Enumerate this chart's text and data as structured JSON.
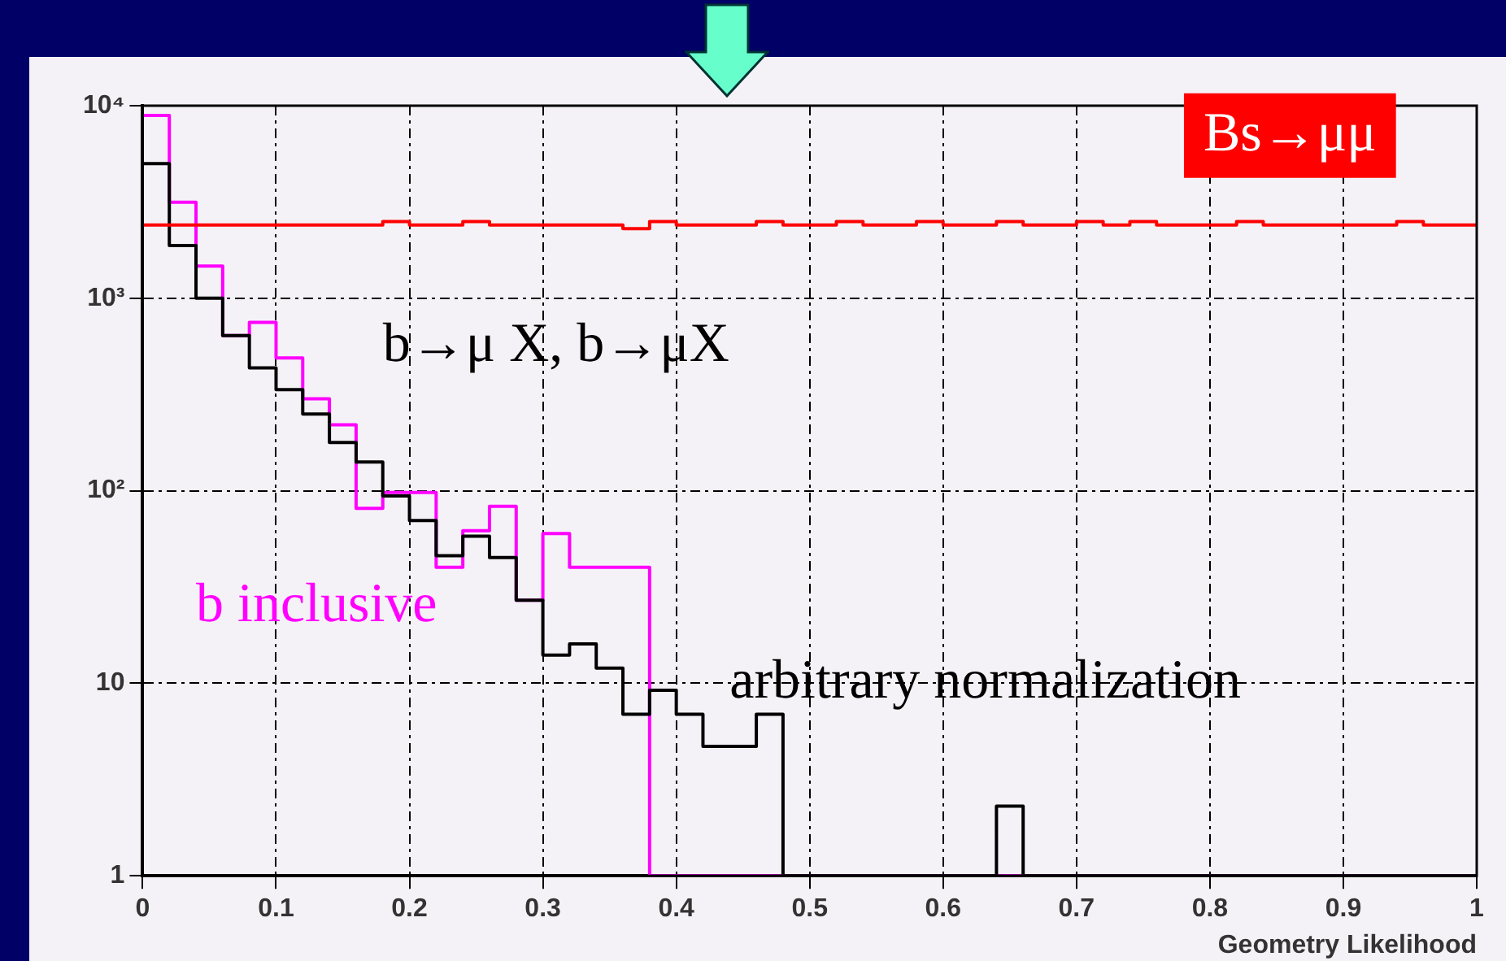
{
  "chart_data": {
    "type": "histogram",
    "xlabel": "Geometry Likelihood",
    "bins": [
      0,
      0.02,
      0.04,
      0.06,
      0.08,
      0.1,
      0.12,
      0.14,
      0.16,
      0.18,
      0.2,
      0.22,
      0.24,
      0.26,
      0.28,
      0.3,
      0.32,
      0.34,
      0.36,
      0.38,
      0.4,
      0.42,
      0.44,
      0.46,
      0.48,
      0.5,
      0.52,
      0.54,
      0.56,
      0.58,
      0.6,
      0.62,
      0.64,
      0.66,
      0.68,
      0.7,
      0.72,
      0.74,
      0.76,
      0.78,
      0.8,
      0.82,
      0.84,
      0.86,
      0.88,
      0.9,
      0.92,
      0.94,
      0.96,
      0.98,
      1
    ],
    "series": [
      {
        "name": "b inclusive",
        "color": "#ff00ff",
        "values": [
          8900,
          3150,
          1470,
          640,
          750,
          490,
          300,
          220,
          81,
          98,
          98,
          40,
          62,
          83,
          27,
          60,
          40,
          40,
          40,
          1,
          1,
          1,
          1,
          1,
          1,
          1,
          1,
          1,
          1,
          1,
          1,
          1,
          1,
          1,
          1,
          1,
          1,
          1,
          1,
          1,
          1,
          1,
          1,
          1,
          1,
          1,
          1,
          1,
          1,
          1
        ]
      },
      {
        "name": "b→μ X, b→μX",
        "color": "#000000",
        "values": [
          5000,
          1880,
          1000,
          640,
          435,
          335,
          250,
          178,
          141,
          94,
          70,
          46,
          58,
          45,
          27,
          14,
          16,
          12,
          6.9,
          9.2,
          6.9,
          4.7,
          4.7,
          6.9,
          1,
          1,
          1,
          1,
          1,
          1,
          1,
          1,
          2.3,
          1,
          1,
          1,
          1,
          1,
          1,
          1,
          1,
          1,
          1,
          1,
          1,
          1,
          1,
          1,
          1,
          1
        ]
      },
      {
        "name": "Bs→μμ",
        "color": "#ff0000",
        "values": [
          2400,
          2400,
          2400,
          2400,
          2400,
          2400,
          2400,
          2400,
          2400,
          2500,
          2400,
          2400,
          2500,
          2400,
          2400,
          2400,
          2400,
          2400,
          2300,
          2500,
          2400,
          2400,
          2400,
          2500,
          2400,
          2400,
          2500,
          2400,
          2400,
          2500,
          2400,
          2400,
          2500,
          2400,
          2400,
          2500,
          2400,
          2500,
          2400,
          2400,
          2400,
          2500,
          2400,
          2400,
          2400,
          2400,
          2400,
          2500,
          2400,
          2400
        ]
      }
    ],
    "annotations": [
      "arbitrary normalization"
    ],
    "xlim": [
      0,
      1
    ],
    "xticks": [
      0,
      0.1,
      0.2,
      0.3,
      0.4,
      0.5,
      0.6,
      0.7,
      0.8,
      0.9,
      1
    ],
    "ylim": [
      1,
      10000
    ],
    "yticks": [
      1,
      10,
      {
        "value": 100,
        "label": "10²"
      },
      {
        "value": 1000,
        "label": "10³"
      },
      {
        "value": 10000,
        "label": "10⁴"
      }
    ],
    "log": "y",
    "grid": true,
    "legend": false
  }
}
